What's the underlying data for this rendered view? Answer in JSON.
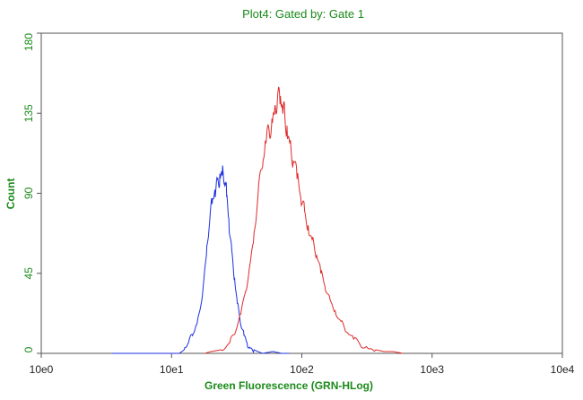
{
  "colors": {
    "label_green": "#1a8a1a",
    "axis": "#555555",
    "series_blue": "#1c2fe0",
    "series_red": "#e02a2a"
  },
  "chart_data": {
    "type": "line",
    "title": "Plot4:  Gated by: Gate 1",
    "xlabel": "Green Fluorescence (GRN-HLog)",
    "ylabel": "Count",
    "x_scale": "log",
    "xlim": [
      1,
      10000
    ],
    "ylim": [
      0,
      180
    ],
    "grid": false,
    "x_ticks": [
      {
        "value": 1,
        "label": "10e0"
      },
      {
        "value": 10,
        "label": "10e1"
      },
      {
        "value": 100,
        "label": "10e2"
      },
      {
        "value": 1000,
        "label": "10e3"
      },
      {
        "value": 10000,
        "label": "10e4"
      }
    ],
    "y_ticks": [
      {
        "value": 0,
        "label": "0"
      },
      {
        "value": 45,
        "label": "45"
      },
      {
        "value": 90,
        "label": "90"
      },
      {
        "value": 135,
        "label": "135"
      },
      {
        "value": 180,
        "label": "180"
      }
    ],
    "series": [
      {
        "color": "#1c2fe0",
        "points": [
          [
            3.5,
            0
          ],
          [
            10,
            0
          ],
          [
            11.5,
            0
          ],
          [
            12.5,
            2
          ],
          [
            13.5,
            6
          ],
          [
            14.5,
            10
          ],
          [
            15.5,
            16
          ],
          [
            16.5,
            24
          ],
          [
            17.5,
            38
          ],
          [
            18.5,
            55
          ],
          [
            19.5,
            72
          ],
          [
            20.5,
            84
          ],
          [
            21.5,
            92
          ],
          [
            22.5,
            98
          ],
          [
            23.5,
            101
          ],
          [
            24.5,
            100
          ],
          [
            25.5,
            96
          ],
          [
            26.5,
            88
          ],
          [
            27.5,
            76
          ],
          [
            29,
            58
          ],
          [
            30.5,
            42
          ],
          [
            32,
            28
          ],
          [
            34,
            16
          ],
          [
            36,
            10
          ],
          [
            38,
            6
          ],
          [
            40,
            3
          ],
          [
            43,
            2
          ],
          [
            46,
            1
          ],
          [
            50,
            0
          ],
          [
            60,
            1
          ],
          [
            70,
            0
          ],
          [
            80,
            0
          ]
        ]
      },
      {
        "color": "#e02a2a",
        "points": [
          [
            18,
            0
          ],
          [
            20,
            1
          ],
          [
            24,
            2
          ],
          [
            28,
            6
          ],
          [
            31,
            12
          ],
          [
            34,
            22
          ],
          [
            37,
            35
          ],
          [
            40,
            50
          ],
          [
            43,
            68
          ],
          [
            46,
            88
          ],
          [
            50,
            105
          ],
          [
            53,
            118
          ],
          [
            56,
            126
          ],
          [
            59,
            132
          ],
          [
            62,
            138
          ],
          [
            65,
            143
          ],
          [
            68,
            140
          ],
          [
            71,
            138
          ],
          [
            74,
            134
          ],
          [
            77,
            128
          ],
          [
            81,
            118
          ],
          [
            86,
            108
          ],
          [
            92,
            98
          ],
          [
            98,
            88
          ],
          [
            105,
            80
          ],
          [
            112,
            72
          ],
          [
            120,
            64
          ],
          [
            130,
            55
          ],
          [
            140,
            45
          ],
          [
            150,
            38
          ],
          [
            165,
            30
          ],
          [
            180,
            24
          ],
          [
            200,
            18
          ],
          [
            220,
            12
          ],
          [
            250,
            8
          ],
          [
            280,
            5
          ],
          [
            320,
            3
          ],
          [
            370,
            2
          ],
          [
            430,
            1
          ],
          [
            500,
            1
          ],
          [
            600,
            0
          ]
        ]
      }
    ]
  }
}
